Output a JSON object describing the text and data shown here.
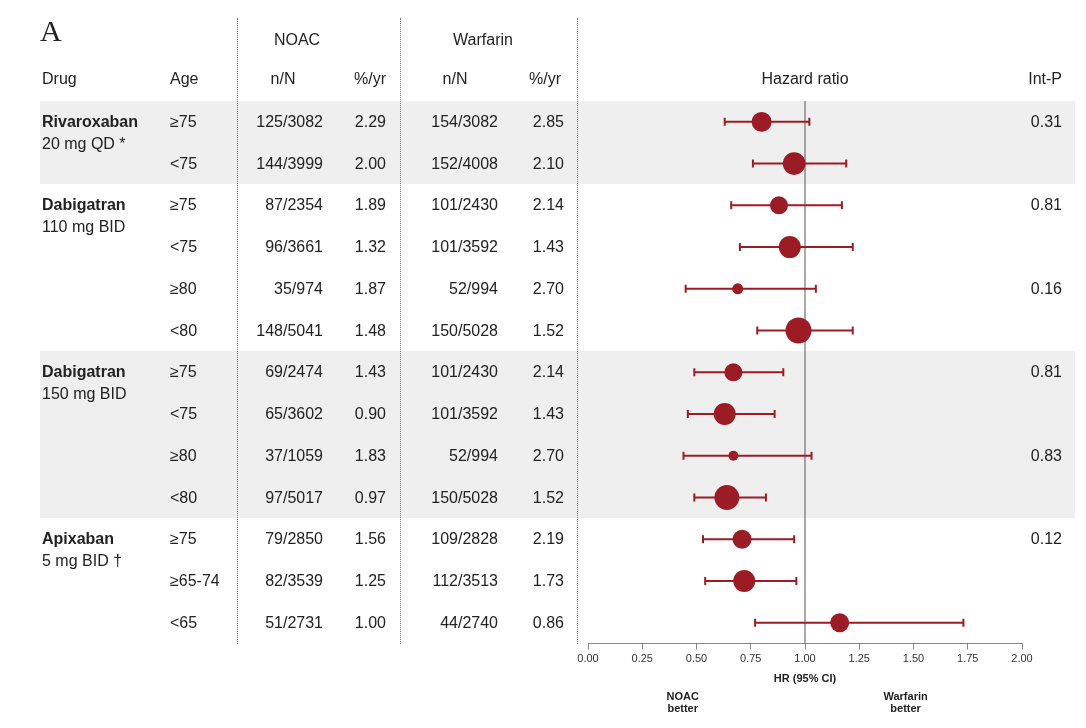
{
  "chart_data": [
    {
      "type": "other",
      "title": "A",
      "annotations": [
        "NOAC",
        "Warfarin"
      ],
      "categories": [
        "Drug",
        "Age",
        "n/N",
        "%/yr",
        "n/N",
        "%/yr",
        "Int-P"
      ],
      "cell_labels": [
        [
          "Rivaroxaban\n20 mg QD *",
          "≥75",
          "125/3082",
          "2.29",
          "154/3082",
          "2.85",
          "0.31"
        ],
        [
          null,
          "<75",
          "144/3999",
          "2.00",
          "152/4008",
          "2.10",
          null
        ],
        [
          "Dabigatran\n110 mg BID",
          "≥75",
          "87/2354",
          "1.89",
          "101/2430",
          "2.14",
          "0.81"
        ],
        [
          null,
          "<75",
          "96/3661",
          "1.32",
          "101/3592",
          "1.43",
          null
        ],
        [
          null,
          "≥80",
          "35/974",
          "1.87",
          "52/994",
          "2.70",
          "0.16"
        ],
        [
          null,
          "<80",
          "148/5041",
          "1.48",
          "150/5028",
          "1.52",
          null
        ],
        [
          "Dabigatran\n150 mg BID",
          "≥75",
          "69/2474",
          "1.43",
          "101/2430",
          "2.14",
          "0.81"
        ],
        [
          null,
          "<75",
          "65/3602",
          "0.90",
          "101/3592",
          "1.43",
          null
        ],
        [
          null,
          "≥80",
          "37/1059",
          "1.83",
          "52/994",
          "2.70",
          "0.83"
        ],
        [
          null,
          "<80",
          "97/5017",
          "0.97",
          "150/5028",
          "1.52",
          null
        ],
        [
          "Apixaban\n5 mg BID †",
          "≥75",
          "79/2850",
          "1.56",
          "109/2828",
          "2.19",
          "0.12"
        ],
        [
          null,
          "≥65-74",
          "82/3539",
          "1.25",
          "112/3513",
          "1.73",
          null
        ],
        [
          null,
          "<65",
          "51/2731",
          "1.00",
          "44/2740",
          "0.86",
          null
        ]
      ]
    },
    {
      "type": "bubble",
      "orientation": "horizontal",
      "title": "Hazard ratio",
      "xlabel": "HR (95% CI)",
      "categories": [
        null,
        null,
        null,
        null,
        null,
        null,
        null,
        null,
        null,
        null,
        null,
        null,
        null
      ],
      "values": [
        0.8,
        0.95,
        0.88,
        0.93,
        0.69,
        0.97,
        0.67,
        0.63,
        0.67,
        0.64,
        0.71,
        0.72,
        1.16
      ],
      "errors": [
        [
          0.63,
          1.02
        ],
        [
          0.76,
          1.19
        ],
        [
          0.66,
          1.17
        ],
        [
          0.7,
          1.22
        ],
        [
          0.45,
          1.05
        ],
        [
          0.78,
          1.22
        ],
        [
          0.49,
          0.9
        ],
        [
          0.46,
          0.86
        ],
        [
          0.44,
          1.03
        ],
        [
          0.49,
          0.82
        ],
        [
          0.53,
          0.95
        ],
        [
          0.54,
          0.96
        ],
        [
          0.77,
          1.73
        ]
      ],
      "sizes": [
        0.59,
        0.76,
        0.48,
        0.72,
        0.18,
        1,
        0.48,
        0.72,
        0.15,
        0.92,
        0.53,
        0.72,
        0.53
      ],
      "color": "#9b1c24",
      "xlim": [
        0,
        2
      ],
      "xticks": [
        {
          "value": 0,
          "label": "0.00"
        },
        {
          "value": 0.25,
          "label": "0.25"
        },
        {
          "value": 0.5,
          "label": "0.50"
        },
        {
          "value": 0.75,
          "label": "0.75"
        },
        {
          "value": 1,
          "label": "1.00"
        },
        {
          "value": 1.25,
          "label": "1.25"
        },
        {
          "value": 1.5,
          "label": "1.50"
        },
        {
          "value": 1.75,
          "label": "1.75"
        },
        {
          "value": 2,
          "label": "2.00"
        }
      ],
      "ref_lines": [
        {
          "axis": "x",
          "value": 1,
          "color": "#555555"
        }
      ],
      "annotations": [
        "NOAC\nbetter",
        "Warfarin\nbetter"
      ],
      "tick_labels": "x",
      "grid": false,
      "legend": false
    }
  ]
}
